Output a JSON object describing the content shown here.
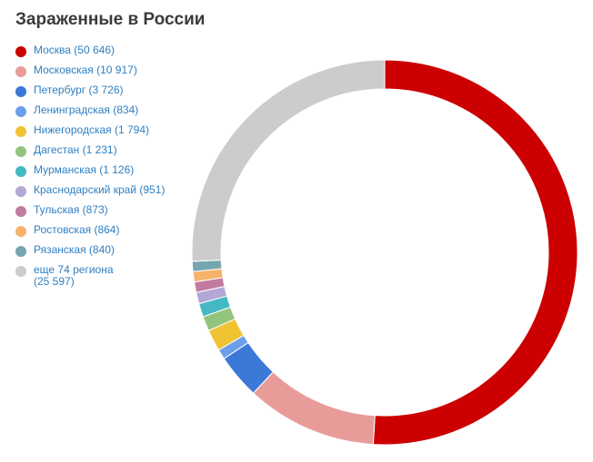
{
  "chart_data": {
    "type": "pie",
    "title": "Зараженные в России",
    "legend_position": "left",
    "donut": true,
    "slices": [
      {
        "label": "Москва",
        "value_text": "50 646",
        "value": 50646,
        "color": "#cc0000"
      },
      {
        "label": "Московская",
        "value_text": "10 917",
        "value": 10917,
        "color": "#e89c9a"
      },
      {
        "label": "Петербург",
        "value_text": "3 726",
        "value": 3726,
        "color": "#3c78d8"
      },
      {
        "label": "Ленинградская",
        "value_text": "834",
        "value": 834,
        "color": "#6d9eeb"
      },
      {
        "label": "Нижегородская",
        "value_text": "1 794",
        "value": 1794,
        "color": "#f1c232"
      },
      {
        "label": "Дагестан",
        "value_text": "1 231",
        "value": 1231,
        "color": "#93c47d"
      },
      {
        "label": "Мурманская",
        "value_text": "1 126",
        "value": 1126,
        "color": "#45b8c5"
      },
      {
        "label": "Краснодарский край",
        "value_text": "951",
        "value": 951,
        "color": "#b4a7d6"
      },
      {
        "label": "Тульская",
        "value_text": "873",
        "value": 873,
        "color": "#c27ba0"
      },
      {
        "label": "Ростовская",
        "value_text": "864",
        "value": 864,
        "color": "#f6b26b"
      },
      {
        "label": "Рязанская",
        "value_text": "840",
        "value": 840,
        "color": "#76a5af"
      },
      {
        "label": "еще 74 региона",
        "value_text": "25 597",
        "value": 25597,
        "color": "#cccccc"
      }
    ]
  }
}
